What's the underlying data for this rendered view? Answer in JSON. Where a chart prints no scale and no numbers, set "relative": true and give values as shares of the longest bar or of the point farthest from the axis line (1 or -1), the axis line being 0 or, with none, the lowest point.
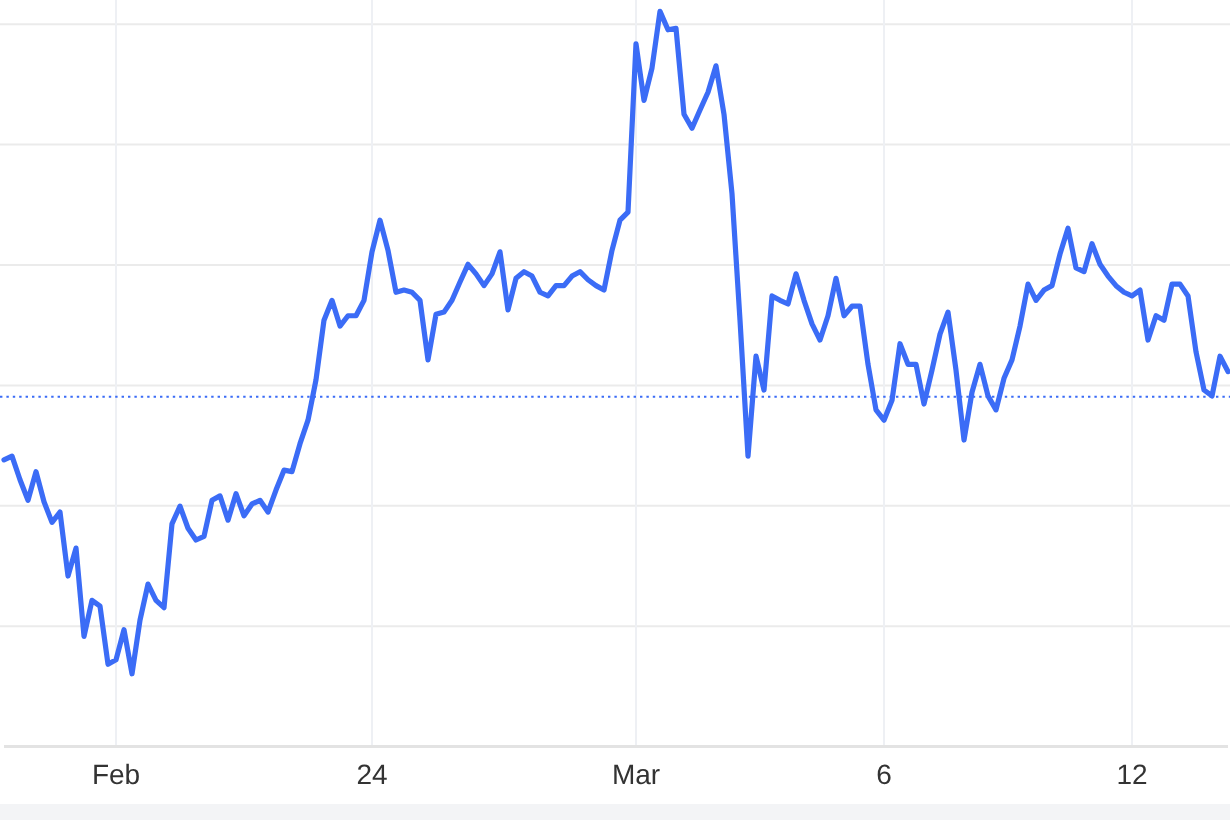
{
  "chart_data": {
    "type": "line",
    "relative": true,
    "color": "#3b6cf6",
    "grid": true,
    "line_style": "solid",
    "categories": [
      null,
      null,
      null,
      null,
      null,
      null,
      null,
      null,
      null,
      null,
      null,
      null,
      null,
      null,
      "Feb",
      null,
      null,
      null,
      null,
      null,
      null,
      null,
      null,
      null,
      null,
      null,
      null,
      null,
      null,
      null,
      null,
      null,
      null,
      null,
      null,
      null,
      null,
      null,
      null,
      null,
      null,
      null,
      null,
      null,
      null,
      null,
      "24",
      null,
      null,
      null,
      null,
      null,
      null,
      null,
      null,
      null,
      null,
      null,
      null,
      null,
      null,
      null,
      null,
      null,
      null,
      null,
      null,
      null,
      null,
      null,
      null,
      null,
      null,
      null,
      null,
      null,
      null,
      null,
      null,
      "Mar",
      null,
      null,
      null,
      null,
      null,
      null,
      null,
      null,
      null,
      null,
      null,
      null,
      null,
      null,
      null,
      null,
      null,
      null,
      null,
      null,
      null,
      null,
      null,
      null,
      null,
      null,
      null,
      null,
      null,
      null,
      "6",
      null,
      null,
      null,
      null,
      null,
      null,
      null,
      null,
      null,
      null,
      null,
      null,
      null,
      null,
      null,
      null,
      null,
      null,
      null,
      null,
      null,
      null,
      null,
      null,
      null,
      null,
      null,
      null,
      null,
      null,
      "12",
      null,
      null,
      null,
      null,
      null,
      null,
      null,
      null,
      null,
      null,
      null,
      null
    ],
    "values": [
      0.39,
      0.395,
      0.363,
      0.335,
      0.374,
      0.333,
      0.305,
      0.319,
      0.232,
      0.27,
      0.15,
      0.199,
      0.191,
      0.112,
      0.118,
      0.159,
      0.099,
      0.172,
      0.221,
      0.199,
      0.189,
      0.303,
      0.327,
      0.297,
      0.281,
      0.286,
      0.335,
      0.341,
      0.308,
      0.344,
      0.314,
      0.33,
      0.335,
      0.319,
      0.349,
      0.376,
      0.374,
      0.412,
      0.444,
      0.499,
      0.58,
      0.607,
      0.572,
      0.586,
      0.586,
      0.607,
      0.673,
      0.716,
      0.675,
      0.618,
      0.621,
      0.618,
      0.607,
      0.526,
      0.588,
      0.591,
      0.607,
      0.632,
      0.656,
      0.643,
      0.627,
      0.643,
      0.673,
      0.594,
      0.637,
      0.646,
      0.64,
      0.618,
      0.613,
      0.627,
      0.627,
      0.64,
      0.646,
      0.635,
      0.627,
      0.621,
      0.675,
      0.716,
      0.727,
      0.956,
      0.879,
      0.923,
      1,
      0.975,
      0.977,
      0.86,
      0.841,
      0.866,
      0.89,
      0.926,
      0.86,
      0.752,
      0.58,
      0.395,
      0.531,
      0.485,
      0.613,
      0.607,
      0.602,
      0.643,
      0.607,
      0.575,
      0.553,
      0.586,
      0.637,
      0.586,
      0.599,
      0.599,
      0.52,
      0.458,
      0.444,
      0.471,
      0.548,
      0.52,
      0.52,
      0.466,
      0.512,
      0.561,
      0.591,
      0.512,
      0.417,
      0.482,
      0.52,
      0.477,
      0.458,
      0.501,
      0.526,
      0.572,
      0.629,
      0.607,
      0.621,
      0.627,
      0.67,
      0.705,
      0.651,
      0.646,
      0.684,
      0.656,
      0.64,
      0.627,
      0.618,
      0.613,
      0.621,
      0.553,
      0.586,
      0.58,
      0.629,
      0.629,
      0.613,
      0.537,
      0.485,
      0.477,
      0.531,
      0.51
    ],
    "ref_lines": [
      {
        "axis": "y",
        "value": 0.476,
        "color": "#3b6cf6",
        "line_style": "dotted"
      }
    ]
  }
}
